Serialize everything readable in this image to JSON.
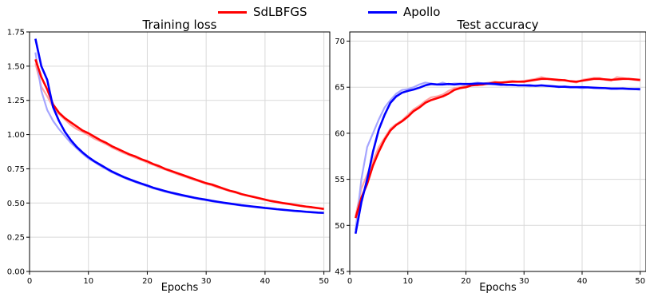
{
  "legend": {
    "items": [
      {
        "label": "SdLBFGS",
        "color": "#ff0000"
      },
      {
        "label": "Apollo",
        "color": "#0000ff"
      }
    ]
  },
  "chart_data": [
    {
      "type": "line",
      "title": "Training loss",
      "xlabel": "Epochs",
      "ylabel": "",
      "xlim": [
        0,
        51
      ],
      "ylim": [
        0,
        1.75
      ],
      "xticks": [
        0,
        10,
        20,
        30,
        40,
        50
      ],
      "yticks": [
        0.0,
        0.25,
        0.5,
        0.75,
        1.0,
        1.25,
        1.5,
        1.75
      ],
      "ytick_labels": [
        "0.00",
        "0.25",
        "0.50",
        "0.75",
        "1.00",
        "1.25",
        "1.50",
        "1.75"
      ],
      "grid": true,
      "x": [
        1,
        2,
        3,
        4,
        5,
        6,
        7,
        8,
        9,
        10,
        11,
        12,
        13,
        14,
        15,
        16,
        17,
        18,
        19,
        20,
        21,
        22,
        23,
        24,
        25,
        26,
        27,
        28,
        29,
        30,
        31,
        32,
        33,
        34,
        35,
        36,
        37,
        38,
        39,
        40,
        41,
        42,
        43,
        44,
        45,
        46,
        47,
        48,
        49,
        50
      ],
      "series": [
        {
          "name": "SdLBFGS",
          "color": "#ff0000",
          "values": [
            1.55,
            1.42,
            1.33,
            1.22,
            1.16,
            1.12,
            1.09,
            1.06,
            1.03,
            1.01,
            0.985,
            0.96,
            0.94,
            0.915,
            0.895,
            0.875,
            0.855,
            0.84,
            0.82,
            0.805,
            0.785,
            0.77,
            0.75,
            0.735,
            0.72,
            0.705,
            0.69,
            0.675,
            0.66,
            0.645,
            0.635,
            0.62,
            0.605,
            0.59,
            0.58,
            0.565,
            0.555,
            0.545,
            0.535,
            0.525,
            0.515,
            0.508,
            0.5,
            0.494,
            0.487,
            0.48,
            0.474,
            0.469,
            0.463,
            0.457
          ]
        },
        {
          "name": "Apollo",
          "color": "#0000ff",
          "values": [
            1.7,
            1.5,
            1.4,
            1.2,
            1.1,
            1.02,
            0.96,
            0.91,
            0.87,
            0.835,
            0.805,
            0.78,
            0.755,
            0.73,
            0.71,
            0.69,
            0.673,
            0.657,
            0.642,
            0.628,
            0.612,
            0.6,
            0.588,
            0.577,
            0.567,
            0.557,
            0.548,
            0.539,
            0.531,
            0.524,
            0.516,
            0.509,
            0.502,
            0.496,
            0.49,
            0.484,
            0.479,
            0.474,
            0.469,
            0.464,
            0.46,
            0.455,
            0.451,
            0.447,
            0.443,
            0.44,
            0.436,
            0.433,
            0.43,
            0.428
          ]
        }
      ],
      "raw_series": [
        {
          "name": "SdLBFGS raw",
          "color": "#ffa5a5",
          "values": [
            1.52,
            1.35,
            1.28,
            1.2,
            1.15,
            1.11,
            1.07,
            1.04,
            1.02,
            0.995,
            0.97,
            0.95,
            0.93,
            0.905,
            0.885,
            0.865,
            0.848,
            0.83,
            0.815,
            0.795,
            0.78,
            0.76,
            0.745,
            0.73,
            0.712,
            0.698,
            0.683,
            0.668,
            0.655,
            0.64,
            0.628,
            0.613,
            0.6,
            0.588,
            0.575,
            0.563,
            0.553,
            0.543,
            0.533,
            0.522,
            0.513,
            0.505,
            0.498,
            0.491,
            0.484,
            0.478,
            0.472,
            0.466,
            0.461,
            0.455
          ]
        },
        {
          "name": "Apollo raw",
          "color": "#a5a5ff",
          "values": [
            1.6,
            1.32,
            1.18,
            1.1,
            1.04,
            0.99,
            0.94,
            0.9,
            0.86,
            0.825,
            0.8,
            0.772,
            0.748,
            0.724,
            0.704,
            0.685,
            0.668,
            0.652,
            0.637,
            0.622,
            0.607,
            0.595,
            0.583,
            0.572,
            0.562,
            0.552,
            0.544,
            0.535,
            0.527,
            0.52,
            0.512,
            0.505,
            0.499,
            0.493,
            0.487,
            0.481,
            0.476,
            0.471,
            0.466,
            0.462,
            0.457,
            0.453,
            0.449,
            0.445,
            0.441,
            0.438,
            0.434,
            0.431,
            0.428,
            0.426
          ]
        }
      ]
    },
    {
      "type": "line",
      "title": "Test accuracy",
      "xlabel": "Epochs",
      "ylabel": "",
      "xlim": [
        0,
        51
      ],
      "ylim": [
        45,
        71
      ],
      "xticks": [
        0,
        10,
        20,
        30,
        40,
        50
      ],
      "yticks": [
        45,
        50,
        55,
        60,
        65,
        70
      ],
      "grid": true,
      "x": [
        1,
        2,
        3,
        4,
        5,
        6,
        7,
        8,
        9,
        10,
        11,
        12,
        13,
        14,
        15,
        16,
        17,
        18,
        19,
        20,
        21,
        22,
        23,
        24,
        25,
        26,
        27,
        28,
        29,
        30,
        31,
        32,
        33,
        34,
        35,
        36,
        37,
        38,
        39,
        40,
        41,
        42,
        43,
        44,
        45,
        46,
        47,
        48,
        49,
        50
      ],
      "series": [
        {
          "name": "SdLBFGS",
          "color": "#ff0000",
          "values": [
            50.8,
            53.0,
            54.5,
            56.5,
            58.0,
            59.3,
            60.3,
            60.9,
            61.3,
            61.8,
            62.4,
            62.8,
            63.3,
            63.6,
            63.8,
            64.0,
            64.3,
            64.7,
            64.9,
            65.0,
            65.2,
            65.25,
            65.3,
            65.4,
            65.5,
            65.5,
            65.55,
            65.6,
            65.6,
            65.6,
            65.7,
            65.8,
            65.9,
            65.9,
            65.85,
            65.8,
            65.75,
            65.65,
            65.6,
            65.7,
            65.8,
            65.9,
            65.9,
            65.85,
            65.8,
            65.85,
            65.9,
            65.9,
            65.85,
            65.8
          ]
        },
        {
          "name": "Apollo",
          "color": "#0000ff",
          "values": [
            49.1,
            52.5,
            55.0,
            58.0,
            60.4,
            62.0,
            63.3,
            64.0,
            64.4,
            64.6,
            64.75,
            64.95,
            65.2,
            65.35,
            65.3,
            65.3,
            65.35,
            65.3,
            65.35,
            65.35,
            65.35,
            65.4,
            65.4,
            65.4,
            65.35,
            65.3,
            65.25,
            65.25,
            65.2,
            65.2,
            65.2,
            65.15,
            65.2,
            65.15,
            65.1,
            65.05,
            65.05,
            65.0,
            65.0,
            65.0,
            64.98,
            64.95,
            64.92,
            64.9,
            64.85,
            64.85,
            64.85,
            64.82,
            64.8,
            64.8
          ]
        }
      ],
      "raw_series": [
        {
          "name": "SdLBFGS raw",
          "color": "#ffa5a5",
          "values": [
            51.0,
            54.0,
            55.5,
            57.0,
            58.5,
            59.5,
            60.5,
            61.0,
            61.4,
            62.0,
            62.6,
            63.0,
            63.5,
            63.9,
            64.0,
            64.2,
            64.6,
            64.9,
            65.0,
            65.2,
            65.3,
            65.2,
            65.4,
            65.5,
            65.6,
            65.5,
            65.6,
            65.7,
            65.6,
            65.7,
            65.8,
            65.9,
            66.1,
            65.9,
            65.8,
            65.7,
            65.8,
            65.6,
            65.5,
            65.8,
            65.9,
            66.0,
            66.0,
            65.8,
            65.7,
            66.1,
            66.0,
            65.9,
            65.8,
            65.7
          ]
        },
        {
          "name": "Apollo raw",
          "color": "#a5a5ff",
          "values": [
            49.5,
            55.0,
            58.5,
            60.0,
            61.5,
            62.8,
            63.6,
            64.3,
            64.7,
            64.8,
            65.0,
            65.3,
            65.5,
            65.4,
            65.3,
            65.5,
            65.3,
            65.4,
            65.4,
            65.3,
            65.4,
            65.5,
            65.4,
            65.3,
            65.3,
            65.2,
            65.3,
            65.2,
            65.2,
            65.2,
            65.1,
            65.2,
            65.2,
            65.1,
            65.1,
            65.0,
            65.1,
            65.0,
            65.0,
            64.9,
            65.0,
            64.9,
            64.9,
            64.9,
            64.8,
            64.8,
            64.9,
            64.8,
            64.8,
            64.7
          ]
        }
      ]
    }
  ]
}
